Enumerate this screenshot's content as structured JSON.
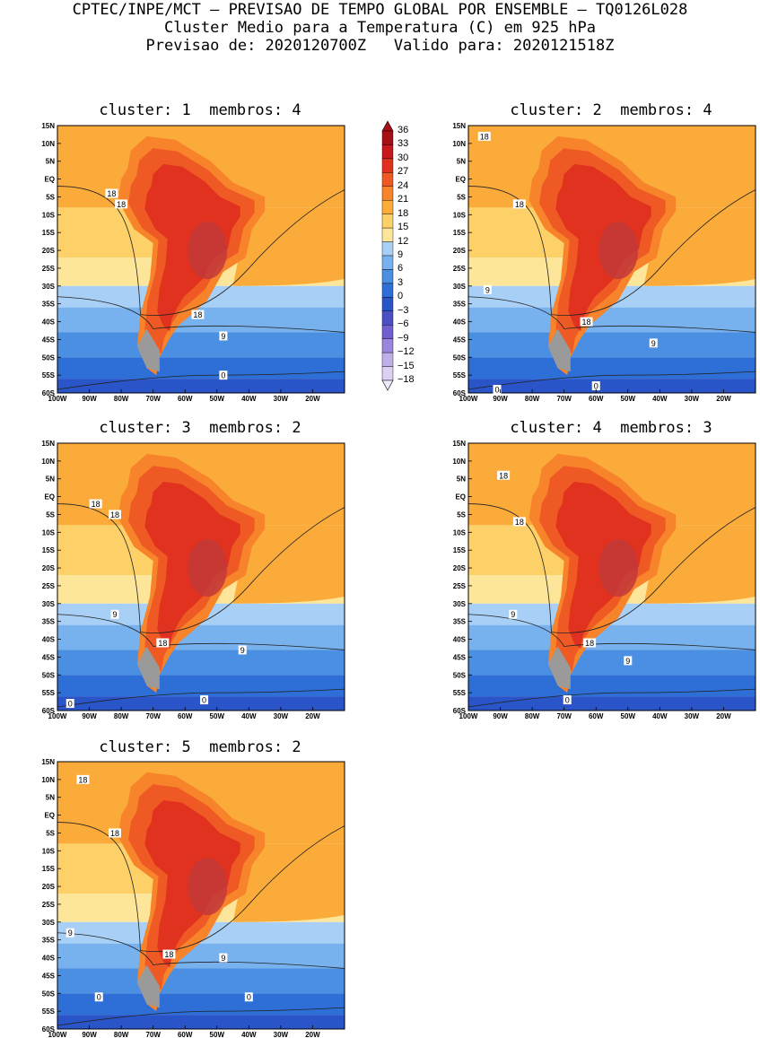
{
  "header": {
    "line1": "CPTEC/INPE/MCT — PREVISAO DE TEMPO GLOBAL POR ENSEMBLE — TQ0126L028",
    "line2": "Cluster Medio para a Temperatura (C) em 925 hPa",
    "line3": "Previsao de: 2020120700Z   Valido para: 2020121518Z"
  },
  "panels": [
    {
      "title": "cluster: 1  membros: 4",
      "labels": [
        "18",
        "18",
        "18",
        "9",
        "0"
      ]
    },
    {
      "title": "cluster: 2  membros: 4",
      "labels": [
        "18",
        "18",
        "9",
        "18",
        "9",
        "0",
        "0"
      ]
    },
    {
      "title": "cluster: 3  membros: 2",
      "labels": [
        "18",
        "18",
        "9",
        "18",
        "9",
        "0",
        "0"
      ]
    },
    {
      "title": "cluster: 4  membros: 3",
      "labels": [
        "18",
        "18",
        "9",
        "18",
        "9",
        "0"
      ]
    },
    {
      "title": "cluster: 5  membros: 2",
      "labels": [
        "18",
        "18",
        "9",
        "18",
        "9",
        "0",
        "0"
      ]
    }
  ],
  "lat_ticks": [
    "15N",
    "10N",
    "5N",
    "EQ",
    "5S",
    "10S",
    "15S",
    "20S",
    "25S",
    "30S",
    "35S",
    "40S",
    "45S",
    "50S",
    "55S",
    "60S"
  ],
  "lon_ticks": [
    "100W",
    "90W",
    "80W",
    "70W",
    "60W",
    "50W",
    "40W",
    "30W",
    "20W"
  ],
  "colorbar": {
    "labels": [
      "36",
      "33",
      "30",
      "27",
      "24",
      "21",
      "18",
      "15",
      "12",
      "9",
      "6",
      "3",
      "0",
      "−3",
      "−6",
      "−9",
      "−12",
      "−15",
      "−18"
    ],
    "colors": [
      "#a50f15",
      "#c8181e",
      "#e0321f",
      "#ef5a24",
      "#f7832a",
      "#fbab3a",
      "#fdd068",
      "#fde69a",
      "#a8d0f6",
      "#78b2ee",
      "#4a8fe2",
      "#2d6fd6",
      "#2a55c8",
      "#4b4fc4",
      "#6f5fd0",
      "#9a86dd",
      "#c0b0ea",
      "#ddd0f4"
    ]
  }
}
